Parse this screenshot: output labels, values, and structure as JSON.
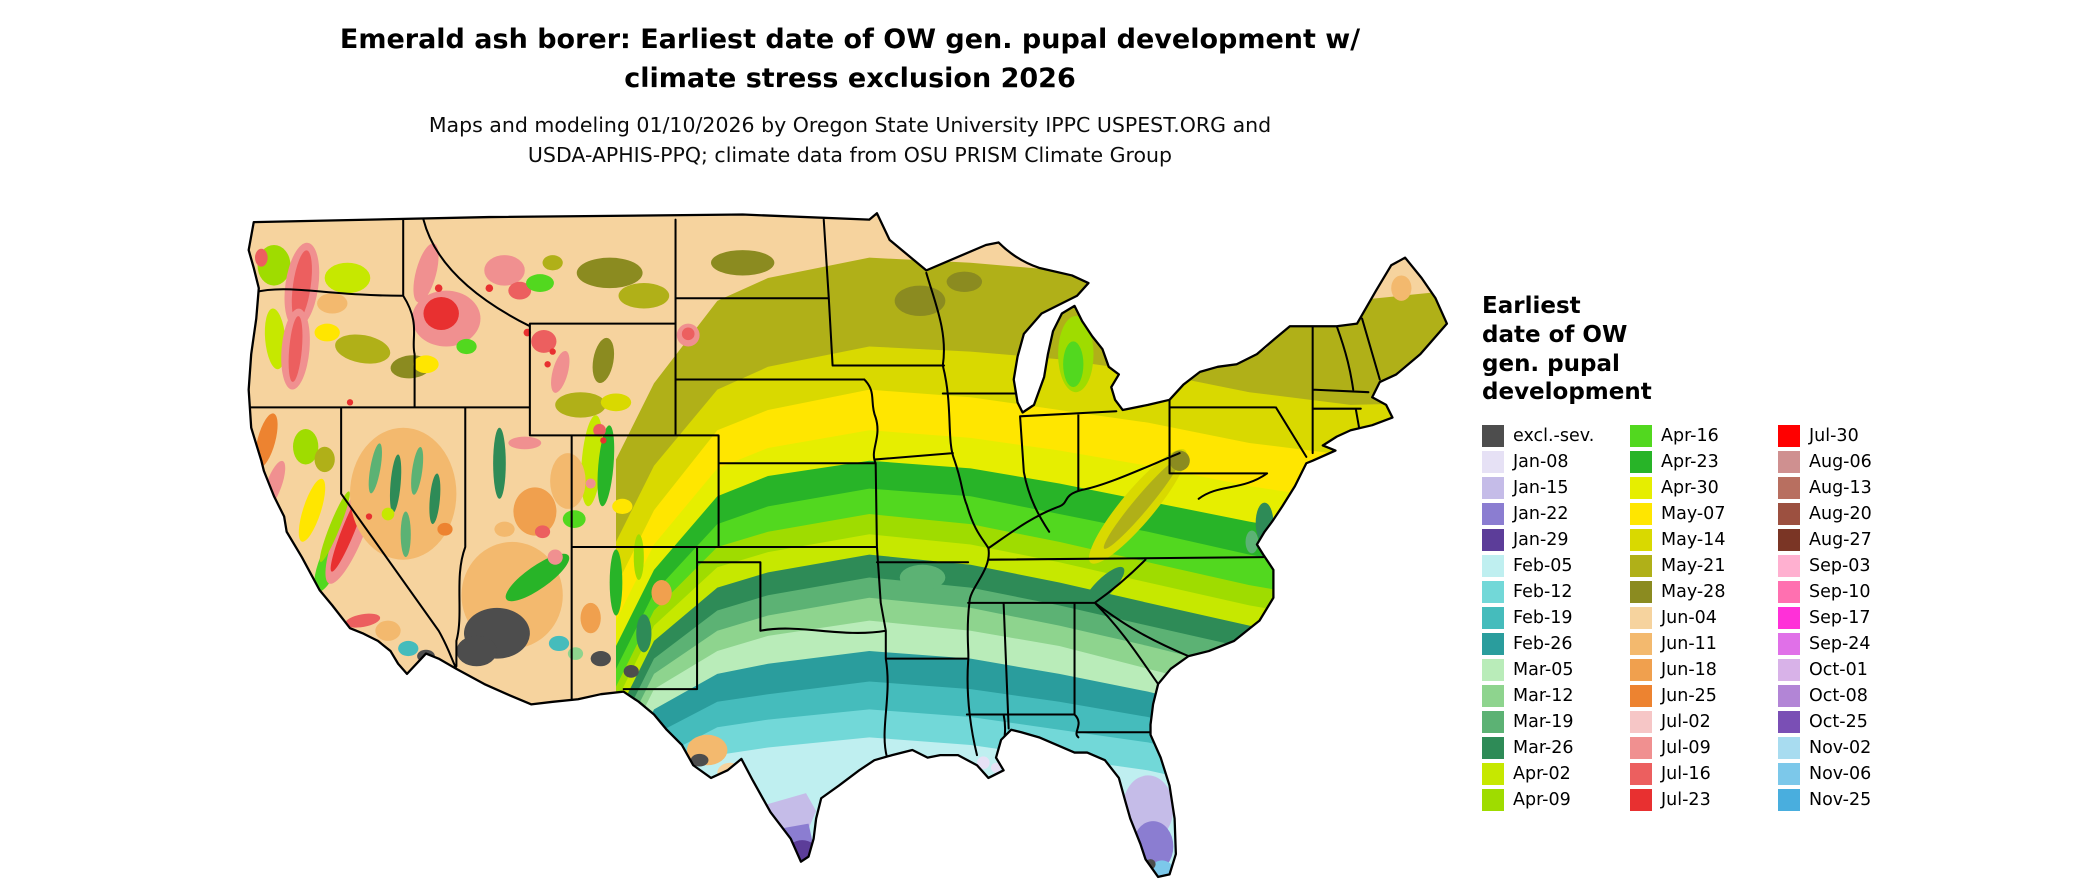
{
  "header": {
    "title_line1": "Emerald ash borer: Earliest date of OW gen. pupal development w/",
    "title_line2": "climate stress exclusion 2026",
    "subtitle_line1": "Maps and modeling 01/10/2026 by Oregon State University IPPC USPEST.ORG and",
    "subtitle_line2": "USDA-APHIS-PPQ; climate data from OSU PRISM Climate Group"
  },
  "legend": {
    "title": "Earliest\ndate of OW\ngen. pupal\ndevelopment",
    "columns": [
      [
        {
          "label": "excl.-sev.",
          "color": "#4d4d4d"
        },
        {
          "label": "Jan-08",
          "color": "#e6e1f5"
        },
        {
          "label": "Jan-15",
          "color": "#c5bce8"
        },
        {
          "label": "Jan-22",
          "color": "#8b7dd1"
        },
        {
          "label": "Jan-29",
          "color": "#5c3d99"
        },
        {
          "label": "Feb-05",
          "color": "#bfeff0"
        },
        {
          "label": "Feb-12",
          "color": "#72d8d8"
        },
        {
          "label": "Feb-19",
          "color": "#45bcbc"
        },
        {
          "label": "Feb-26",
          "color": "#2a9d9d"
        },
        {
          "label": "Mar-05",
          "color": "#b9ecb9"
        },
        {
          "label": "Mar-12",
          "color": "#8ed48e"
        },
        {
          "label": "Mar-19",
          "color": "#5cb274"
        },
        {
          "label": "Mar-26",
          "color": "#2e8b57"
        },
        {
          "label": "Apr-02",
          "color": "#c6e800"
        },
        {
          "label": "Apr-09",
          "color": "#9fdc00"
        }
      ],
      [
        {
          "label": "Apr-16",
          "color": "#52d81f"
        },
        {
          "label": "Apr-23",
          "color": "#28b428"
        },
        {
          "label": "Apr-30",
          "color": "#e6ee00"
        },
        {
          "label": "May-07",
          "color": "#ffe600"
        },
        {
          "label": "May-14",
          "color": "#d9d900"
        },
        {
          "label": "May-21",
          "color": "#b0b018"
        },
        {
          "label": "May-28",
          "color": "#8b8b20"
        },
        {
          "label": "Jun-04",
          "color": "#f6d39e"
        },
        {
          "label": "Jun-11",
          "color": "#f3b96e"
        },
        {
          "label": "Jun-18",
          "color": "#f0a04e"
        },
        {
          "label": "Jun-25",
          "color": "#ed8330"
        },
        {
          "label": "Jul-02",
          "color": "#f6c6c6"
        },
        {
          "label": "Jul-09",
          "color": "#f09090"
        },
        {
          "label": "Jul-16",
          "color": "#ec5f5f"
        },
        {
          "label": "Jul-23",
          "color": "#e83030"
        }
      ],
      [
        {
          "label": "Jul-30",
          "color": "#ff0000"
        },
        {
          "label": "Aug-06",
          "color": "#cf9090"
        },
        {
          "label": "Aug-13",
          "color": "#b86f60"
        },
        {
          "label": "Aug-20",
          "color": "#9c5040"
        },
        {
          "label": "Aug-27",
          "color": "#7a3525"
        },
        {
          "label": "Sep-03",
          "color": "#ffb0d0"
        },
        {
          "label": "Sep-10",
          "color": "#ff70b0"
        },
        {
          "label": "Sep-17",
          "color": "#ff30d8"
        },
        {
          "label": "Sep-24",
          "color": "#e070e8"
        },
        {
          "label": "Oct-01",
          "color": "#d8b2e8"
        },
        {
          "label": "Oct-08",
          "color": "#b285d6"
        },
        {
          "label": "Oct-25",
          "color": "#7a4fb5"
        },
        {
          "label": "Nov-02",
          "color": "#a8dcf0"
        },
        {
          "label": "Nov-06",
          "color": "#7cc8ea"
        },
        {
          "label": "Nov-25",
          "color": "#49aede"
        }
      ]
    ]
  },
  "map": {
    "outline_color": "#000000",
    "state_border_color": "#000000",
    "water_color": "#ffffff",
    "base_fill_class": "Jun-04"
  },
  "chart_data": {
    "type": "choropleth_map",
    "region": "Continental United States",
    "title": "Emerald ash borer: Earliest date of OW gen. pupal development w/ climate stress exclusion 2026",
    "value_meaning": "Earliest date of OW gen. pupal development",
    "classes": [
      {
        "label": "excl.-sev.",
        "color": "#4d4d4d"
      },
      {
        "label": "Jan-08",
        "color": "#e6e1f5"
      },
      {
        "label": "Jan-15",
        "color": "#c5bce8"
      },
      {
        "label": "Jan-22",
        "color": "#8b7dd1"
      },
      {
        "label": "Jan-29",
        "color": "#5c3d99"
      },
      {
        "label": "Feb-05",
        "color": "#bfeff0"
      },
      {
        "label": "Feb-12",
        "color": "#72d8d8"
      },
      {
        "label": "Feb-19",
        "color": "#45bcbc"
      },
      {
        "label": "Feb-26",
        "color": "#2a9d9d"
      },
      {
        "label": "Mar-05",
        "color": "#b9ecb9"
      },
      {
        "label": "Mar-12",
        "color": "#8ed48e"
      },
      {
        "label": "Mar-19",
        "color": "#5cb274"
      },
      {
        "label": "Mar-26",
        "color": "#2e8b57"
      },
      {
        "label": "Apr-02",
        "color": "#c6e800"
      },
      {
        "label": "Apr-09",
        "color": "#9fdc00"
      },
      {
        "label": "Apr-16",
        "color": "#52d81f"
      },
      {
        "label": "Apr-23",
        "color": "#28b428"
      },
      {
        "label": "Apr-30",
        "color": "#e6ee00"
      },
      {
        "label": "May-07",
        "color": "#ffe600"
      },
      {
        "label": "May-14",
        "color": "#d9d900"
      },
      {
        "label": "May-21",
        "color": "#b0b018"
      },
      {
        "label": "May-28",
        "color": "#8b8b20"
      },
      {
        "label": "Jun-04",
        "color": "#f6d39e"
      },
      {
        "label": "Jun-11",
        "color": "#f3b96e"
      },
      {
        "label": "Jun-18",
        "color": "#f0a04e"
      },
      {
        "label": "Jun-25",
        "color": "#ed8330"
      },
      {
        "label": "Jul-02",
        "color": "#f6c6c6"
      },
      {
        "label": "Jul-09",
        "color": "#f09090"
      },
      {
        "label": "Jul-16",
        "color": "#ec5f5f"
      },
      {
        "label": "Jul-23",
        "color": "#e83030"
      },
      {
        "label": "Jul-30",
        "color": "#ff0000"
      },
      {
        "label": "Aug-06",
        "color": "#cf9090"
      },
      {
        "label": "Aug-13",
        "color": "#b86f60"
      },
      {
        "label": "Aug-20",
        "color": "#9c5040"
      },
      {
        "label": "Aug-27",
        "color": "#7a3525"
      },
      {
        "label": "Sep-03",
        "color": "#ffb0d0"
      },
      {
        "label": "Sep-10",
        "color": "#ff70b0"
      },
      {
        "label": "Sep-17",
        "color": "#ff30d8"
      },
      {
        "label": "Sep-24",
        "color": "#e070e8"
      },
      {
        "label": "Oct-01",
        "color": "#d8b2e8"
      },
      {
        "label": "Oct-08",
        "color": "#b285d6"
      },
      {
        "label": "Oct-25",
        "color": "#7a4fb5"
      },
      {
        "label": "Nov-02",
        "color": "#a8dcf0"
      },
      {
        "label": "Nov-06",
        "color": "#7cc8ea"
      },
      {
        "label": "Nov-25",
        "color": "#49aede"
      }
    ],
    "spatial_pattern_summary": "Late dates (tan/olive) across northern plains and New England; yellow across the central Midwest; greens through the mid-South; teals along the Gulf Coast; January purples in south Texas and peninsular Florida; mountain West mottled with late (red/pink) and excluded (gray) areas."
  }
}
